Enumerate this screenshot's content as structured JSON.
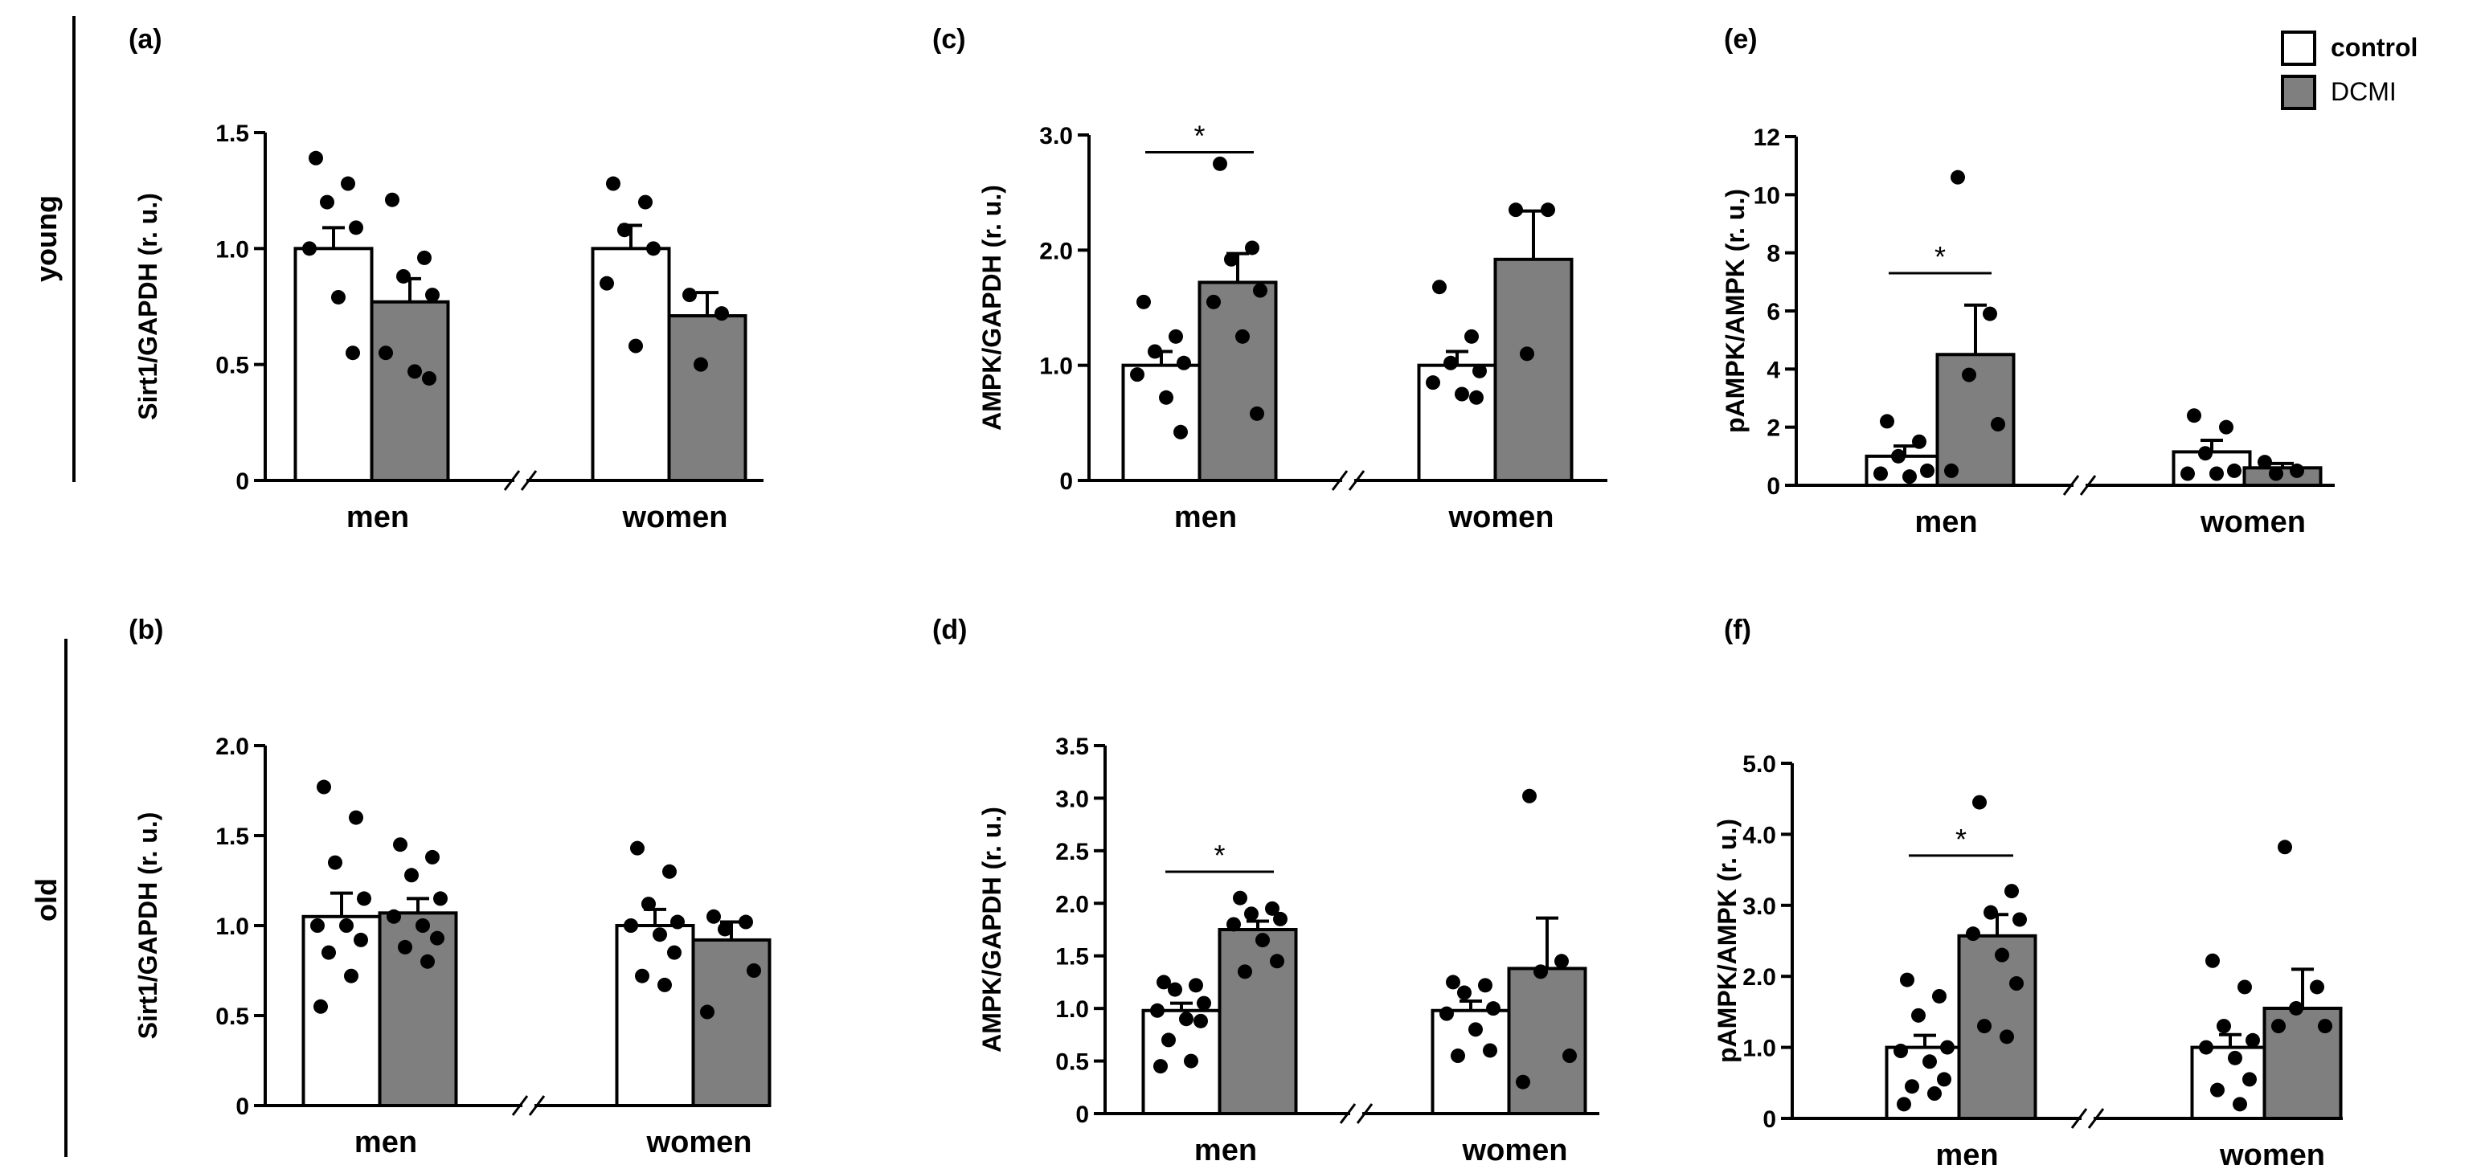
{
  "figure": {
    "row_labels": [
      "young",
      "old"
    ],
    "legend": [
      {
        "label": "control",
        "color": "#ffffff"
      },
      {
        "label": "DCMI",
        "color": "#7f7f7f"
      }
    ],
    "colors": {
      "control": "#ffffff",
      "dcmi": "#7f7f7f",
      "ink": "#000000"
    }
  },
  "chart_data": [
    {
      "panel": "(a)",
      "type": "bar",
      "ylabel": "Sirt1/GAPDH (r. u.)",
      "categories": [
        "men",
        "women"
      ],
      "ylim": [
        0,
        1.5
      ],
      "yticks": [
        0,
        0.5,
        1.0,
        1.5
      ],
      "ytick_labels": [
        "0",
        "0.5",
        "1.0",
        "1.5"
      ],
      "series": [
        {
          "name": "control",
          "values": [
            1.0,
            1.0
          ],
          "sem": [
            0.09,
            0.1
          ],
          "points": [
            [
              1.39,
              1.28,
              1.2,
              1.09,
              1.0,
              0.79,
              0.55
            ],
            [
              1.28,
              1.2,
              1.08,
              1.0,
              0.85,
              0.58
            ]
          ]
        },
        {
          "name": "DCMI",
          "values": [
            0.77,
            0.71
          ],
          "sem": [
            0.1,
            0.1
          ],
          "points": [
            [
              1.21,
              0.96,
              0.88,
              0.8,
              0.55,
              0.47,
              0.44
            ],
            [
              0.8,
              0.72,
              0.5
            ]
          ]
        }
      ],
      "significance": []
    },
    {
      "panel": "(c)",
      "type": "bar",
      "ylabel": "AMPK/GAPDH (r. u.)",
      "categories": [
        "men",
        "women"
      ],
      "ylim": [
        0,
        3.0
      ],
      "yticks": [
        0,
        1.0,
        2.0,
        3.0
      ],
      "ytick_labels": [
        "0",
        "1.0",
        "2.0",
        "3.0"
      ],
      "series": [
        {
          "name": "control",
          "values": [
            1.0,
            1.0
          ],
          "sem": [
            0.12,
            0.12
          ],
          "points": [
            [
              1.55,
              1.25,
              1.12,
              1.02,
              0.92,
              0.72,
              0.42
            ],
            [
              1.68,
              1.25,
              1.02,
              0.95,
              0.85,
              0.75,
              0.72
            ]
          ]
        },
        {
          "name": "DCMI",
          "values": [
            1.72,
            1.92
          ],
          "sem": [
            0.25,
            0.42
          ],
          "points": [
            [
              2.75,
              2.02,
              1.92,
              1.65,
              1.55,
              1.25,
              0.58
            ],
            [
              2.35,
              2.35,
              1.1
            ]
          ]
        }
      ],
      "significance": [
        {
          "category": "men",
          "label": "*"
        }
      ]
    },
    {
      "panel": "(e)",
      "type": "bar",
      "ylabel": "pAMPK/AMPK (r. u.)",
      "categories": [
        "men",
        "women"
      ],
      "ylim": [
        0,
        12
      ],
      "yticks": [
        0,
        2,
        4,
        6,
        8,
        10,
        12
      ],
      "ytick_labels": [
        "0",
        "2",
        "4",
        "6",
        "8",
        "10",
        "12"
      ],
      "series": [
        {
          "name": "control",
          "values": [
            1.0,
            1.15
          ],
          "sem": [
            0.35,
            0.4
          ],
          "points": [
            [
              2.2,
              1.5,
              1.0,
              0.5,
              0.4,
              0.3
            ],
            [
              2.4,
              2.0,
              1.1,
              0.5,
              0.4,
              0.4
            ]
          ]
        },
        {
          "name": "DCMI",
          "values": [
            4.5,
            0.6
          ],
          "sem": [
            1.7,
            0.15
          ],
          "points": [
            [
              10.6,
              5.9,
              3.8,
              2.1,
              0.5
            ],
            [
              0.8,
              0.5,
              0.4
            ]
          ]
        }
      ],
      "significance": [
        {
          "category": "men",
          "label": "*"
        }
      ]
    },
    {
      "panel": "(b)",
      "type": "bar",
      "ylabel": "Sirt1/GAPDH (r. u.)",
      "categories": [
        "men",
        "women"
      ],
      "ylim": [
        0,
        2.0
      ],
      "yticks": [
        0,
        0.5,
        1.0,
        1.5,
        2.0
      ],
      "ytick_labels": [
        "0",
        "0.5",
        "1.0",
        "1.5",
        "2.0"
      ],
      "series": [
        {
          "name": "control",
          "values": [
            1.05,
            1.0
          ],
          "sem": [
            0.13,
            0.09
          ],
          "points": [
            [
              1.77,
              1.6,
              1.35,
              1.15,
              1.0,
              1.0,
              0.92,
              0.85,
              0.72,
              0.55
            ],
            [
              1.43,
              1.3,
              1.12,
              1.02,
              1.0,
              0.95,
              0.85,
              0.72,
              0.67
            ]
          ]
        },
        {
          "name": "DCMI",
          "values": [
            1.07,
            0.92
          ],
          "sem": [
            0.08,
            0.1
          ],
          "points": [
            [
              1.45,
              1.38,
              1.28,
              1.15,
              1.05,
              1.0,
              0.93,
              0.88,
              0.8
            ],
            [
              1.05,
              1.02,
              0.98,
              0.75,
              0.52
            ]
          ]
        }
      ],
      "significance": []
    },
    {
      "panel": "(d)",
      "type": "bar",
      "ylabel": "AMPK/GAPDH (r. u.)",
      "categories": [
        "men",
        "women"
      ],
      "ylim": [
        0,
        3.5
      ],
      "yticks": [
        0,
        0.5,
        1.0,
        1.5,
        2.0,
        2.5,
        3.0,
        3.5
      ],
      "ytick_labels": [
        "0",
        "0.5",
        "1.0",
        "1.5",
        "2.0",
        "2.5",
        "3.0",
        "3.5"
      ],
      "series": [
        {
          "name": "control",
          "values": [
            0.98,
            0.98
          ],
          "sem": [
            0.07,
            0.09
          ],
          "points": [
            [
              1.25,
              1.22,
              1.18,
              1.05,
              0.98,
              0.9,
              0.88,
              0.7,
              0.5,
              0.45
            ],
            [
              1.25,
              1.22,
              1.15,
              1.0,
              0.95,
              0.8,
              0.6,
              0.55
            ]
          ]
        },
        {
          "name": "DCMI",
          "values": [
            1.75,
            1.38
          ],
          "sem": [
            0.08,
            0.48
          ],
          "points": [
            [
              2.05,
              1.95,
              1.9,
              1.85,
              1.8,
              1.65,
              1.45,
              1.35
            ],
            [
              3.02,
              1.45,
              1.35,
              0.55,
              0.3
            ]
          ]
        }
      ],
      "significance": [
        {
          "category": "men",
          "label": "*"
        }
      ]
    },
    {
      "panel": "(f)",
      "type": "bar",
      "ylabel": "pAMPK/AMPK (r. u.)",
      "categories": [
        "men",
        "women"
      ],
      "ylim": [
        0,
        5.0
      ],
      "yticks": [
        0,
        1.0,
        2.0,
        3.0,
        4.0,
        5.0
      ],
      "ytick_labels": [
        "0",
        "1.0",
        "2.0",
        "3.0",
        "4.0",
        "5.0"
      ],
      "series": [
        {
          "name": "control",
          "values": [
            1.0,
            1.0
          ],
          "sem": [
            0.17,
            0.18
          ],
          "points": [
            [
              1.95,
              1.72,
              1.45,
              1.0,
              0.95,
              0.8,
              0.55,
              0.45,
              0.35,
              0.2
            ],
            [
              2.22,
              1.85,
              1.3,
              1.1,
              1.0,
              0.85,
              0.55,
              0.4,
              0.2
            ]
          ]
        },
        {
          "name": "DCMI",
          "values": [
            2.57,
            1.55
          ],
          "sem": [
            0.3,
            0.55
          ],
          "points": [
            [
              4.45,
              3.2,
              2.9,
              2.8,
              2.6,
              2.3,
              1.9,
              1.3,
              1.15
            ],
            [
              3.82,
              1.85,
              1.55,
              1.3,
              1.3
            ]
          ]
        }
      ],
      "significance": [
        {
          "category": "men",
          "label": "*"
        }
      ]
    }
  ]
}
